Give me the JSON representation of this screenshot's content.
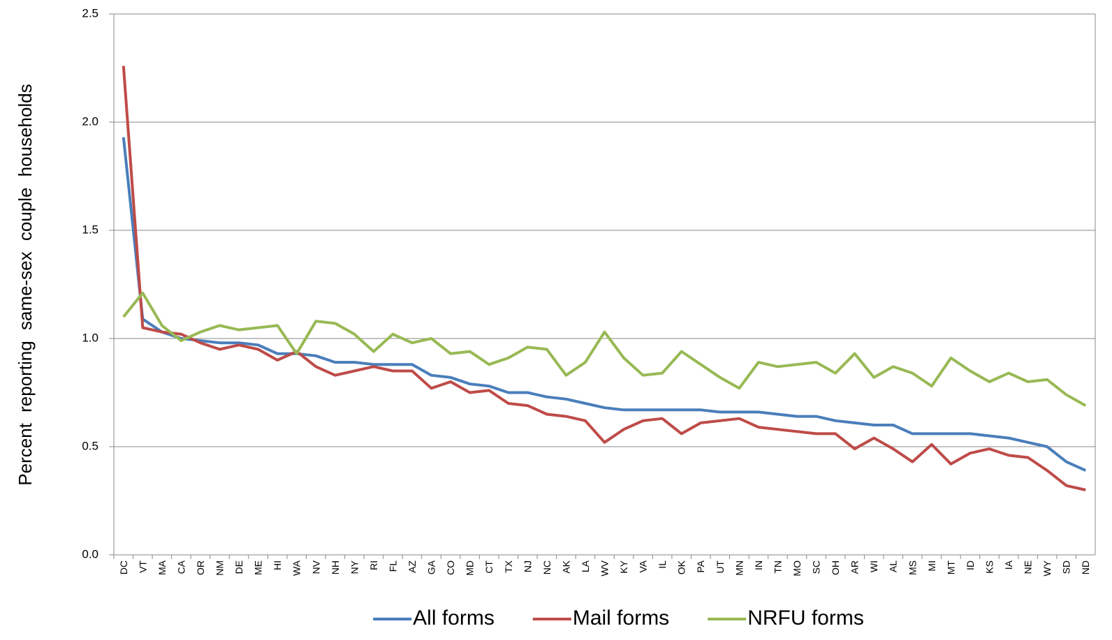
{
  "chart_data": {
    "type": "line",
    "y_label": "Percent reporting same-sex couple households",
    "categories": [
      "DC",
      "VT",
      "MA",
      "CA",
      "OR",
      "NM",
      "DE",
      "ME",
      "HI",
      "WA",
      "NV",
      "NH",
      "NY",
      "RI",
      "FL",
      "AZ",
      "GA",
      "CO",
      "MD",
      "CT",
      "TX",
      "NJ",
      "NC",
      "AK",
      "LA",
      "WV",
      "KY",
      "VA",
      "IL",
      "OK",
      "PA",
      "UT",
      "MN",
      "IN",
      "TN",
      "MO",
      "SC",
      "OH",
      "AR",
      "WI",
      "AL",
      "MS",
      "MI",
      "MT",
      "ID",
      "KS",
      "IA",
      "NE",
      "WY",
      "SD",
      "ND"
    ],
    "series": [
      {
        "name": "All forms",
        "color": "#4a7ebb",
        "values": [
          1.93,
          1.09,
          1.03,
          1.0,
          0.99,
          0.98,
          0.98,
          0.97,
          0.93,
          0.93,
          0.92,
          0.89,
          0.89,
          0.88,
          0.88,
          0.88,
          0.83,
          0.82,
          0.79,
          0.78,
          0.75,
          0.75,
          0.73,
          0.72,
          0.7,
          0.68,
          0.67,
          0.67,
          0.67,
          0.67,
          0.67,
          0.66,
          0.66,
          0.66,
          0.65,
          0.64,
          0.64,
          0.62,
          0.61,
          0.6,
          0.6,
          0.56,
          0.56,
          0.56,
          0.56,
          0.55,
          0.54,
          0.52,
          0.5,
          0.43,
          0.39
        ]
      },
      {
        "name": "Mail forms",
        "color": "#be4b48",
        "values": [
          2.26,
          1.05,
          1.03,
          1.02,
          0.98,
          0.95,
          0.97,
          0.95,
          0.9,
          0.94,
          0.87,
          0.83,
          0.85,
          0.87,
          0.85,
          0.85,
          0.77,
          0.8,
          0.75,
          0.76,
          0.7,
          0.69,
          0.65,
          0.64,
          0.62,
          0.52,
          0.58,
          0.62,
          0.63,
          0.56,
          0.61,
          0.62,
          0.63,
          0.59,
          0.58,
          0.57,
          0.56,
          0.56,
          0.49,
          0.54,
          0.49,
          0.43,
          0.51,
          0.42,
          0.47,
          0.49,
          0.46,
          0.45,
          0.39,
          0.32,
          0.3
        ]
      },
      {
        "name": "NRFU forms",
        "color": "#98b954",
        "values": [
          1.1,
          1.21,
          1.06,
          0.99,
          1.03,
          1.06,
          1.04,
          1.05,
          1.06,
          0.93,
          1.08,
          1.07,
          1.02,
          0.94,
          1.02,
          0.98,
          1.0,
          0.93,
          0.94,
          0.88,
          0.91,
          0.96,
          0.95,
          0.83,
          0.89,
          1.03,
          0.91,
          0.83,
          0.84,
          0.94,
          0.88,
          0.82,
          0.77,
          0.89,
          0.87,
          0.88,
          0.89,
          0.84,
          0.93,
          0.82,
          0.87,
          0.84,
          0.78,
          0.91,
          0.85,
          0.8,
          0.84,
          0.8,
          0.81,
          0.74,
          0.69
        ]
      }
    ],
    "ylim": [
      0,
      2.5
    ],
    "yticks": [
      {
        "value": 0,
        "label": "0.0"
      },
      0.5,
      {
        "value": 1,
        "label": "1.0"
      },
      1.5,
      {
        "value": 2,
        "label": "2.0"
      },
      2.5
    ],
    "grid": true,
    "legend": "bottom"
  }
}
